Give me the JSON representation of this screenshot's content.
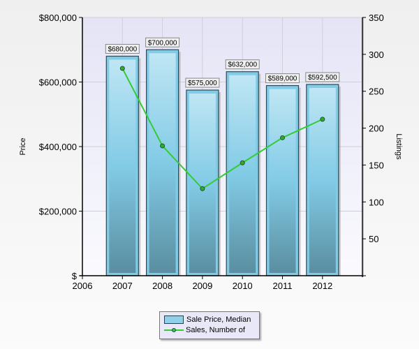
{
  "chart_data": {
    "type": "bar+line",
    "title": "",
    "xlabel": "",
    "ylabel": "Price",
    "y2label": "Listings",
    "categories": [
      "2007",
      "2008",
      "2009",
      "2010",
      "2011",
      "2012"
    ],
    "x_ticks": [
      "2006",
      "2007",
      "2008",
      "2009",
      "2010",
      "2011",
      "2012"
    ],
    "y_ticks": [
      "$",
      "$200,000",
      "$400,000",
      "$600,000",
      "$800,000"
    ],
    "y2_ticks": [
      "50",
      "100",
      "150",
      "200",
      "250",
      "300",
      "350"
    ],
    "ylim": [
      0,
      800000
    ],
    "y2lim": [
      0,
      350
    ],
    "grid": true,
    "legend_position": "bottom",
    "series": [
      {
        "name": "Sale Price, Median",
        "type": "bar",
        "axis": "left",
        "values": [
          680000,
          700000,
          575000,
          632000,
          589000,
          592500
        ],
        "labels": [
          "$680,000",
          "$700,000",
          "$575,000",
          "$632,000",
          "$589,000",
          "$592,500"
        ],
        "color": "#87ceeb"
      },
      {
        "name": "Sales, Number of",
        "type": "line",
        "axis": "right",
        "values": [
          281,
          176,
          118,
          153,
          187,
          212
        ],
        "color": "#33cc33"
      }
    ]
  },
  "legend": {
    "items": [
      {
        "label": "Sale Price, Median"
      },
      {
        "label": "Sales, Number of"
      }
    ]
  },
  "axes": {
    "y_title": "Price",
    "y2_title": "Listings"
  }
}
